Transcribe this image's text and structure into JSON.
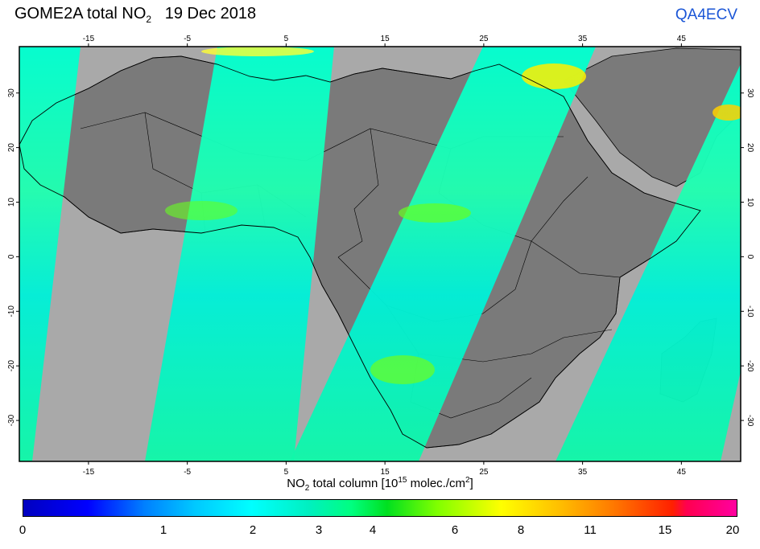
{
  "title": {
    "product": "GOME2A total NO",
    "subscript": "2",
    "date": "19 Dec 2018"
  },
  "brand": "QA4ECV",
  "axes": {
    "lon_ticks": [
      "-15",
      "-5",
      "5",
      "15",
      "25",
      "35",
      "45"
    ],
    "lat_ticks": [
      "30",
      "20",
      "10",
      "0",
      "-10",
      "-20",
      "-30"
    ],
    "xlabel": {
      "prefix": "NO",
      "sub": "2",
      "middle": " total column [10",
      "sup": "15",
      "units": " molec./cm",
      "sup2": "2",
      "suffix": "]"
    }
  },
  "colorbar": {
    "labels": [
      "0",
      "1",
      "2",
      "3",
      "4",
      "6",
      "8",
      "11",
      "15",
      "20"
    ]
  },
  "colors": {
    "ocean_gap": "#a9a9a9",
    "land_gap": "#7a7a7a",
    "swath_low": "#00f5c8",
    "swath_high": "#ffff00",
    "brand": "#1a55d6"
  }
}
